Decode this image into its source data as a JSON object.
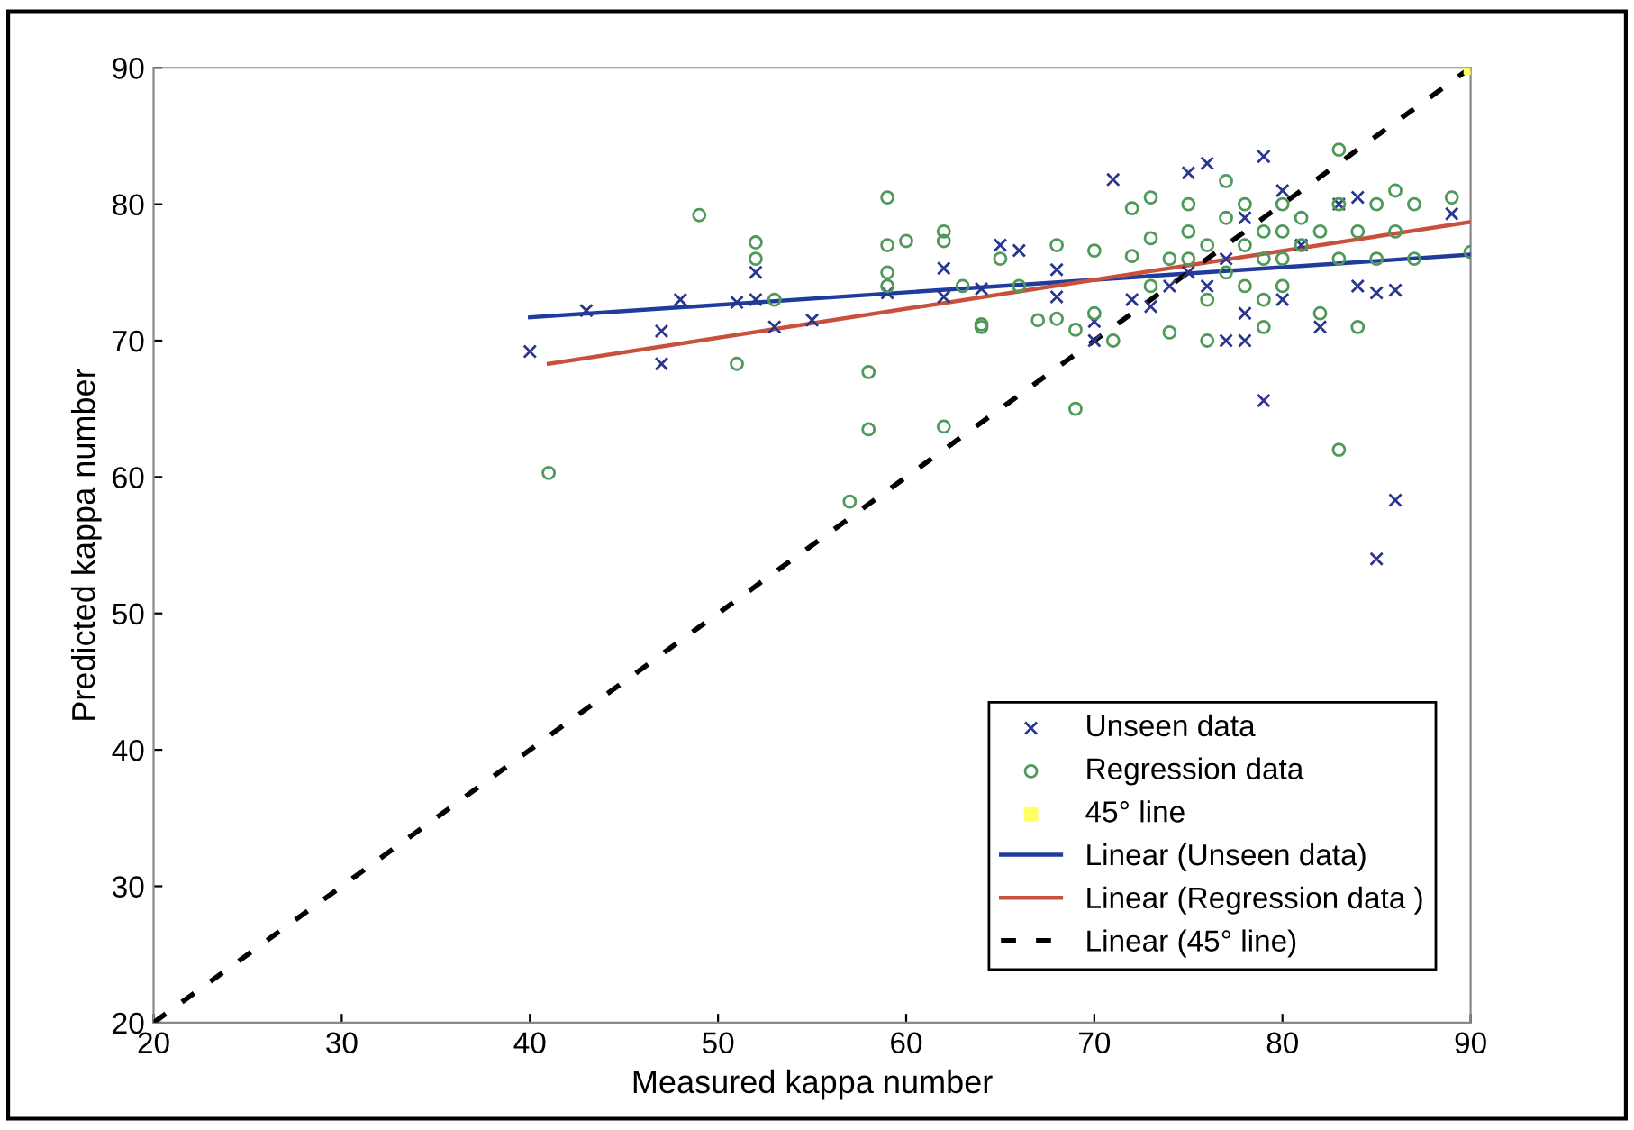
{
  "chart_data": {
    "type": "scatter",
    "xlabel": "Measured kappa number",
    "ylabel": "Predicted kappa number",
    "xlim": [
      20,
      90
    ],
    "ylim": [
      20,
      90
    ],
    "xticks": [
      20,
      30,
      40,
      50,
      60,
      70,
      80,
      90
    ],
    "yticks": [
      20,
      30,
      40,
      50,
      60,
      70,
      80,
      90
    ],
    "grid": false,
    "legend": "bottom right",
    "series": [
      {
        "name": "Unseen data",
        "marker": "cross",
        "color": "#2a3590",
        "x": [
          40,
          43,
          47,
          47,
          48,
          51,
          52,
          52,
          53,
          55,
          59,
          62,
          62,
          64,
          65,
          66,
          68,
          68,
          70,
          70,
          71,
          72,
          73,
          74,
          75,
          75,
          76,
          76,
          77,
          77,
          78,
          78,
          78,
          79,
          79,
          80,
          80,
          81,
          82,
          83,
          84,
          84,
          85,
          85,
          86,
          86,
          89
        ],
        "values": [
          69.2,
          72.2,
          70.7,
          68.3,
          73,
          72.8,
          73,
          75,
          71,
          71.5,
          73.5,
          75.3,
          73.2,
          73.8,
          77,
          76.6,
          75.2,
          73.2,
          71.4,
          70,
          81.8,
          73,
          72.5,
          74,
          75,
          82.3,
          83,
          74,
          70,
          76,
          70,
          79,
          72,
          83.5,
          65.6,
          81,
          73,
          77,
          71,
          80,
          74,
          80.5,
          54,
          73.5,
          58.3,
          73.7,
          79.3
        ]
      },
      {
        "name": "Regression data",
        "marker": "circle",
        "color": "#4f9a5a",
        "x": [
          41,
          49,
          51,
          52,
          52,
          53,
          57,
          58,
          58,
          59,
          59,
          59,
          59,
          60,
          62,
          62,
          62,
          63,
          64,
          64,
          65,
          66,
          67,
          68,
          68,
          69,
          69,
          70,
          70,
          71,
          72,
          72,
          73,
          73,
          73,
          74,
          74,
          75,
          75,
          75,
          76,
          76,
          76,
          77,
          77,
          77,
          78,
          78,
          78,
          79,
          79,
          79,
          79,
          80,
          80,
          80,
          80,
          81,
          81,
          82,
          82,
          83,
          83,
          83,
          83,
          84,
          84,
          85,
          85,
          86,
          86,
          87,
          87,
          89,
          90
        ],
        "values": [
          60.3,
          79.2,
          68.3,
          77.2,
          76,
          73,
          58.2,
          67.7,
          63.5,
          80.5,
          77,
          75,
          74,
          77.3,
          78,
          77.3,
          63.7,
          74,
          71.2,
          71,
          76,
          74,
          71.5,
          77,
          71.6,
          65,
          70.8,
          76.6,
          72,
          70,
          79.7,
          76.2,
          80.5,
          77.5,
          74,
          76,
          70.6,
          80,
          76,
          78,
          77,
          73,
          70,
          81.7,
          79,
          75,
          77,
          80,
          74,
          78,
          76,
          73,
          71,
          80,
          78,
          76,
          74,
          79,
          77,
          78,
          72,
          84,
          80,
          76,
          62,
          78,
          71,
          80,
          76,
          81,
          78,
          80,
          76,
          80.5,
          76.5
        ]
      },
      {
        "name": "45° line",
        "marker": "square",
        "color": "#ffff66",
        "x": [
          90
        ],
        "values": [
          90
        ]
      },
      {
        "name": "Linear (Unseen data)",
        "type": "line",
        "line_style": "solid",
        "color": "#1f3c9c",
        "x": [
          40,
          90
        ],
        "values": [
          71.7,
          76.3
        ]
      },
      {
        "name": "Linear (Regression data )",
        "type": "line",
        "line_style": "solid",
        "color": "#c8503c",
        "x": [
          41,
          90
        ],
        "values": [
          68.3,
          78.7
        ]
      },
      {
        "name": "Linear (45° line)",
        "type": "line",
        "line_style": "dashed",
        "color": "#000000",
        "x": [
          20,
          90
        ],
        "values": [
          20,
          90
        ]
      }
    ]
  }
}
